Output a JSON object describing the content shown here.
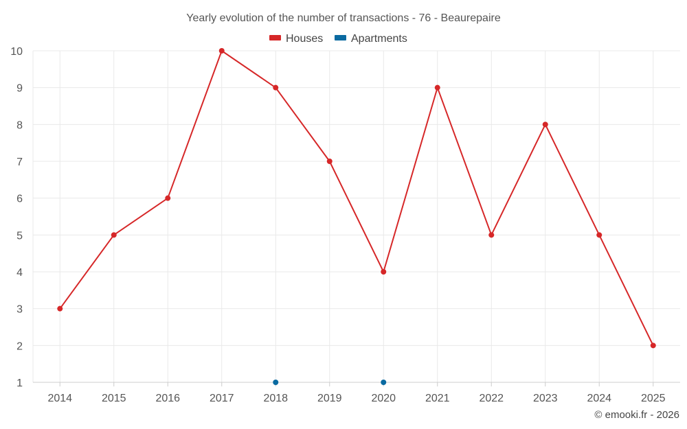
{
  "chart_data": {
    "type": "line",
    "title": "Yearly evolution of the number of transactions - 76 - Beaurepaire",
    "categories": [
      "2014",
      "2015",
      "2016",
      "2017",
      "2018",
      "2019",
      "2020",
      "2021",
      "2022",
      "2023",
      "2024",
      "2025"
    ],
    "series": [
      {
        "name": "Houses",
        "color": "#d62728",
        "values": [
          3,
          5,
          6,
          10,
          9,
          7,
          4,
          9,
          5,
          8,
          5,
          2
        ]
      },
      {
        "name": "Apartments",
        "color": "#0a6aa1",
        "values": [
          null,
          null,
          null,
          null,
          1,
          null,
          1,
          null,
          null,
          null,
          null,
          null
        ]
      }
    ],
    "ylim": [
      1,
      10
    ],
    "yticks": [
      1,
      2,
      3,
      4,
      5,
      6,
      7,
      8,
      9,
      10
    ],
    "xlabel": "",
    "ylabel": "",
    "grid": true,
    "legend_position": "top-center"
  },
  "credit": "© emooki.fr - 2026"
}
